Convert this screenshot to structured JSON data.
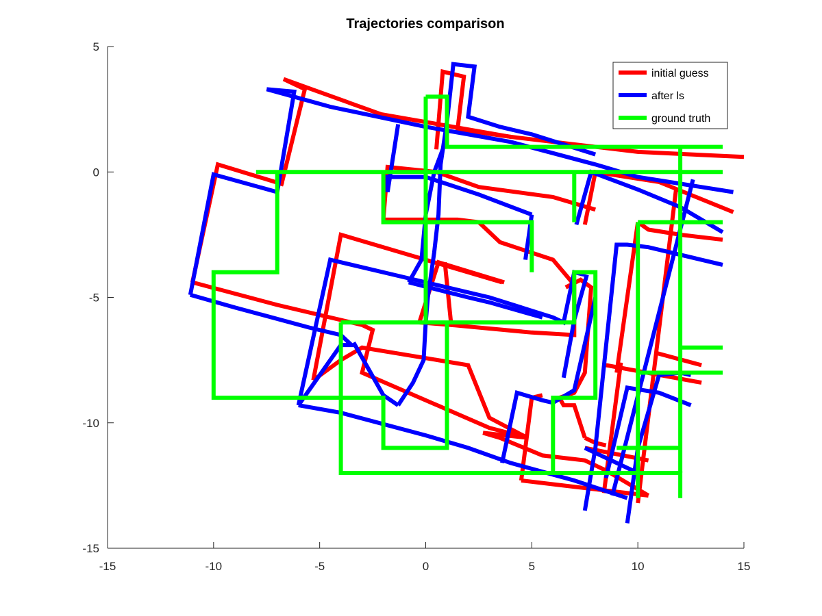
{
  "chart_data": {
    "type": "line",
    "title": "Trajectories comparison",
    "xlabel": "",
    "ylabel": "",
    "xlim": [
      -15,
      15
    ],
    "ylim": [
      -15,
      5
    ],
    "xticks": [
      -15,
      -10,
      -5,
      0,
      5,
      10,
      15
    ],
    "xtick_labels": [
      "-15",
      "-10",
      "-5",
      "0",
      "5",
      "10",
      "15"
    ],
    "yticks": [
      -15,
      -10,
      -5,
      0,
      5
    ],
    "ytick_labels": [
      "-15",
      "-10",
      "-5",
      "0",
      "5"
    ],
    "grid": false,
    "legend_position": "top-right",
    "series": [
      {
        "name": "initial guess",
        "color": "#ff0000",
        "segments": [
          [
            [
              -6.8,
              -0.5
            ],
            [
              -5.7,
              3.3
            ],
            [
              -6.7,
              3.7
            ],
            [
              -2.1,
              2.3
            ],
            [
              4.0,
              1.4
            ],
            [
              10.0,
              0.8
            ],
            [
              15.0,
              0.6
            ]
          ],
          [
            [
              -11.0,
              -4.4
            ],
            [
              -9.8,
              0.3
            ],
            [
              -6.7,
              -0.5
            ]
          ],
          [
            [
              -11.0,
              -4.4
            ],
            [
              -7.0,
              -5.3
            ],
            [
              -3.0,
              -6.1
            ],
            [
              -2.5,
              -6.3
            ],
            [
              -3.0,
              -8.0
            ],
            [
              3.0,
              -10.2
            ],
            [
              4.8,
              -10.6
            ]
          ],
          [
            [
              -5.3,
              -8.3
            ],
            [
              -4.0,
              -2.5
            ],
            [
              3.6,
              -4.4
            ]
          ],
          [
            [
              -5.3,
              -8.3
            ],
            [
              -4.0,
              -7.5
            ],
            [
              -3.0,
              -7.0
            ],
            [
              2.0,
              -7.7
            ],
            [
              3.0,
              -9.8
            ],
            [
              4.8,
              -10.6
            ]
          ],
          [
            [
              2.7,
              -10.4
            ],
            [
              4.8,
              -10.6
            ]
          ],
          [
            [
              -2.0,
              -1.9
            ],
            [
              -1.8,
              0.2
            ],
            [
              0.5,
              0.0
            ],
            [
              2.5,
              -0.6
            ],
            [
              6.0,
              -1.0
            ],
            [
              8.0,
              -1.5
            ]
          ],
          [
            [
              -2.0,
              -1.9
            ],
            [
              1.5,
              -1.9
            ],
            [
              2.5,
              -2.0
            ],
            [
              3.5,
              -2.8
            ],
            [
              6.0,
              -3.5
            ],
            [
              7.0,
              -4.5
            ],
            [
              7.0,
              -6.5
            ],
            [
              5.0,
              -6.4
            ],
            [
              1.2,
              -6.1
            ]
          ],
          [
            [
              0.9,
              -3.6
            ],
            [
              1.2,
              -6.1
            ],
            [
              -0.3,
              -6.0
            ],
            [
              0.6,
              -3.6
            ],
            [
              3.7,
              -4.4
            ]
          ],
          [
            [
              0.5,
              0.9
            ],
            [
              0.8,
              4.0
            ],
            [
              1.8,
              3.8
            ],
            [
              1.5,
              1.7
            ],
            [
              4.0,
              1.4
            ]
          ],
          [
            [
              7.5,
              -2.1
            ],
            [
              8.0,
              0.0
            ],
            [
              11.0,
              -0.4
            ],
            [
              14.5,
              -1.6
            ]
          ],
          [
            [
              10.0,
              -2.0
            ],
            [
              10.5,
              -2.3
            ],
            [
              12.0,
              -2.5
            ],
            [
              14.0,
              -2.7
            ]
          ],
          [
            [
              10.0,
              -2.0
            ],
            [
              9.0,
              -8.0
            ]
          ],
          [
            [
              10.0,
              -13.2
            ],
            [
              11.8,
              -0.7
            ]
          ],
          [
            [
              10.8,
              -7.2
            ],
            [
              13.0,
              -7.7
            ]
          ],
          [
            [
              8.5,
              -7.7
            ],
            [
              13.0,
              -8.4
            ]
          ],
          [
            [
              8.4,
              -12.8
            ],
            [
              9.2,
              -7.6
            ]
          ],
          [
            [
              7.5,
              -10.6
            ],
            [
              7.0,
              -9.3
            ],
            [
              6.5,
              -9.3
            ],
            [
              6.3,
              -9.0
            ],
            [
              7.0,
              -8.8
            ],
            [
              7.5,
              -8.0
            ],
            [
              7.8,
              -4.6
            ],
            [
              7.3,
              -4.3
            ],
            [
              6.6,
              -4.6
            ]
          ],
          [
            [
              7.5,
              -10.6
            ],
            [
              8.0,
              -10.8
            ],
            [
              8.5,
              -10.9
            ]
          ],
          [
            [
              4.5,
              -12.3
            ],
            [
              5.0,
              -9.0
            ],
            [
              5.5,
              -8.9
            ]
          ],
          [
            [
              4.5,
              -12.3
            ],
            [
              6.5,
              -12.5
            ],
            [
              8.5,
              -12.7
            ],
            [
              10.5,
              -12.9
            ]
          ],
          [
            [
              2.7,
              -10.4
            ],
            [
              3.5,
              -10.6
            ],
            [
              5.5,
              -11.3
            ],
            [
              7.5,
              -11.5
            ],
            [
              8.5,
              -11.9
            ],
            [
              10.5,
              -12.9
            ]
          ],
          [
            [
              7.5,
              -11.0
            ],
            [
              10.5,
              -11.5
            ]
          ]
        ]
      },
      {
        "name": "after ls",
        "color": "#0000ff",
        "segments": [
          [
            [
              -7.5,
              3.3
            ],
            [
              -4.5,
              2.6
            ],
            [
              0.0,
              1.8
            ],
            [
              4.0,
              1.2
            ],
            [
              8.0,
              0.3
            ],
            [
              10.0,
              -0.2
            ],
            [
              14.5,
              -0.8
            ]
          ],
          [
            [
              -7.0,
              -0.8
            ],
            [
              -6.2,
              3.2
            ],
            [
              -7.5,
              3.3
            ]
          ],
          [
            [
              -7.0,
              -0.8
            ],
            [
              -10.0,
              -0.1
            ],
            [
              -11.1,
              -4.9
            ]
          ],
          [
            [
              -11.1,
              -4.9
            ],
            [
              -9.0,
              -5.4
            ],
            [
              -5.5,
              -6.2
            ],
            [
              -4.0,
              -6.5
            ],
            [
              -3.5,
              -6.9
            ],
            [
              -4.0,
              -6.9
            ]
          ],
          [
            [
              -4.0,
              -6.9
            ],
            [
              -6.0,
              -9.3
            ]
          ],
          [
            [
              -6.0,
              -9.3
            ],
            [
              -4.0,
              -9.6
            ],
            [
              0.0,
              -10.5
            ],
            [
              2.0,
              -11.0
            ],
            [
              4.0,
              -11.6
            ],
            [
              7.0,
              -12.3
            ],
            [
              9.5,
              -13.0
            ]
          ],
          [
            [
              -6.0,
              -9.3
            ],
            [
              -4.5,
              -3.5
            ],
            [
              -1.5,
              -4.1
            ],
            [
              3.0,
              -5.0
            ],
            [
              6.0,
              -5.8
            ],
            [
              6.5,
              -6.0
            ],
            [
              7.0,
              -4.0
            ],
            [
              7.5,
              -4.1
            ]
          ],
          [
            [
              -3.4,
              -6.8
            ],
            [
              -2.0,
              -8.9
            ],
            [
              -1.3,
              -9.3
            ]
          ],
          [
            [
              -1.3,
              -9.3
            ],
            [
              -0.6,
              -8.4
            ],
            [
              -0.1,
              -7.5
            ],
            [
              0.0,
              -6.0
            ],
            [
              0.1,
              -5.0
            ],
            [
              0.4,
              -3.2
            ],
            [
              0.6,
              -1.7
            ],
            [
              0.7,
              0.3
            ],
            [
              1.0,
              2.0
            ],
            [
              1.3,
              4.3
            ],
            [
              2.3,
              4.2
            ],
            [
              2.0,
              2.2
            ],
            [
              3.5,
              1.8
            ],
            [
              5.0,
              1.5
            ],
            [
              8.0,
              0.7
            ]
          ],
          [
            [
              -0.8,
              -4.4
            ],
            [
              -0.2,
              -3.5
            ],
            [
              0.0,
              -1.7
            ],
            [
              0.4,
              0.0
            ],
            [
              0.8,
              0.9
            ]
          ],
          [
            [
              -0.8,
              -4.4
            ],
            [
              2.0,
              -5.0
            ],
            [
              3.0,
              -5.2
            ],
            [
              5.5,
              -5.8
            ]
          ],
          [
            [
              -1.3,
              1.9
            ],
            [
              -1.8,
              -0.8
            ],
            [
              -1.8,
              -0.2
            ],
            [
              0.0,
              -0.2
            ],
            [
              2.5,
              -0.9
            ],
            [
              5.0,
              -1.7
            ]
          ],
          [
            [
              5.0,
              -1.7
            ],
            [
              4.7,
              -3.5
            ]
          ],
          [
            [
              7.1,
              -2.1
            ],
            [
              7.8,
              0.0
            ],
            [
              10.0,
              -0.7
            ],
            [
              12.0,
              -1.4
            ],
            [
              14.0,
              -2.4
            ]
          ],
          [
            [
              6.5,
              -8.2
            ],
            [
              7.0,
              -5.9
            ],
            [
              7.6,
              -4.1
            ]
          ],
          [
            [
              3.6,
              -11.6
            ],
            [
              4.3,
              -8.8
            ],
            [
              5.5,
              -9.1
            ],
            [
              6.0,
              -9.2
            ],
            [
              7.0,
              -8.7
            ],
            [
              8.0,
              -5.0
            ]
          ],
          [
            [
              7.5,
              -13.5
            ],
            [
              8.0,
              -11.0
            ],
            [
              9.0,
              -2.9
            ],
            [
              9.5,
              -2.9
            ],
            [
              10.5,
              -3.0
            ],
            [
              14.0,
              -3.7
            ]
          ],
          [
            [
              8.8,
              -12.9
            ],
            [
              12.6,
              -0.3
            ]
          ],
          [
            [
              9.5,
              -14.0
            ],
            [
              10.0,
              -11.0
            ],
            [
              11.0,
              -8.1
            ],
            [
              12.0,
              -8.0
            ],
            [
              12.5,
              -8.1
            ]
          ],
          [
            [
              8.5,
              -12.2
            ],
            [
              9.5,
              -8.6
            ],
            [
              11.0,
              -8.8
            ],
            [
              12.5,
              -9.3
            ]
          ],
          [
            [
              7.5,
              -11.0
            ],
            [
              10.0,
              -12.0
            ]
          ]
        ]
      },
      {
        "name": "ground truth",
        "color": "#00ff00",
        "segments": [
          [
            [
              -8.0,
              0.0
            ],
            [
              14.0,
              0.0
            ]
          ],
          [
            [
              -7.0,
              0.0
            ],
            [
              -7.0,
              -4.0
            ],
            [
              -10.0,
              -4.0
            ],
            [
              -10.0,
              -9.0
            ],
            [
              -2.0,
              -9.0
            ],
            [
              -2.0,
              -11.0
            ],
            [
              1.0,
              -11.0
            ],
            [
              1.0,
              -6.0
            ]
          ],
          [
            [
              -4.0,
              -6.0
            ],
            [
              7.0,
              -6.0
            ],
            [
              7.0,
              -4.0
            ],
            [
              8.0,
              -4.0
            ],
            [
              8.0,
              -9.0
            ],
            [
              6.0,
              -9.0
            ],
            [
              6.0,
              -12.0
            ]
          ],
          [
            [
              -4.0,
              -6.0
            ],
            [
              -4.0,
              -12.0
            ],
            [
              12.0,
              -12.0
            ],
            [
              12.0,
              -13.0
            ]
          ],
          [
            [
              0.0,
              3.0
            ],
            [
              0.0,
              -6.0
            ]
          ],
          [
            [
              0.0,
              3.0
            ],
            [
              1.0,
              3.0
            ],
            [
              1.0,
              1.0
            ],
            [
              14.0,
              1.0
            ]
          ],
          [
            [
              -2.0,
              0.0
            ],
            [
              -2.0,
              -2.0
            ],
            [
              5.0,
              -2.0
            ],
            [
              5.0,
              -4.0
            ]
          ],
          [
            [
              7.0,
              0.0
            ],
            [
              7.0,
              -2.0
            ]
          ],
          [
            [
              12.0,
              1.0
            ],
            [
              12.0,
              -12.0
            ]
          ],
          [
            [
              10.0,
              -2.0
            ],
            [
              14.0,
              -2.0
            ]
          ],
          [
            [
              10.0,
              -2.0
            ],
            [
              10.0,
              -13.0
            ]
          ],
          [
            [
              10.0,
              -8.0
            ],
            [
              14.0,
              -8.0
            ]
          ],
          [
            [
              12.0,
              -7.0
            ],
            [
              14.0,
              -7.0
            ]
          ],
          [
            [
              9.0,
              -11.0
            ],
            [
              12.0,
              -11.0
            ]
          ]
        ]
      }
    ]
  }
}
